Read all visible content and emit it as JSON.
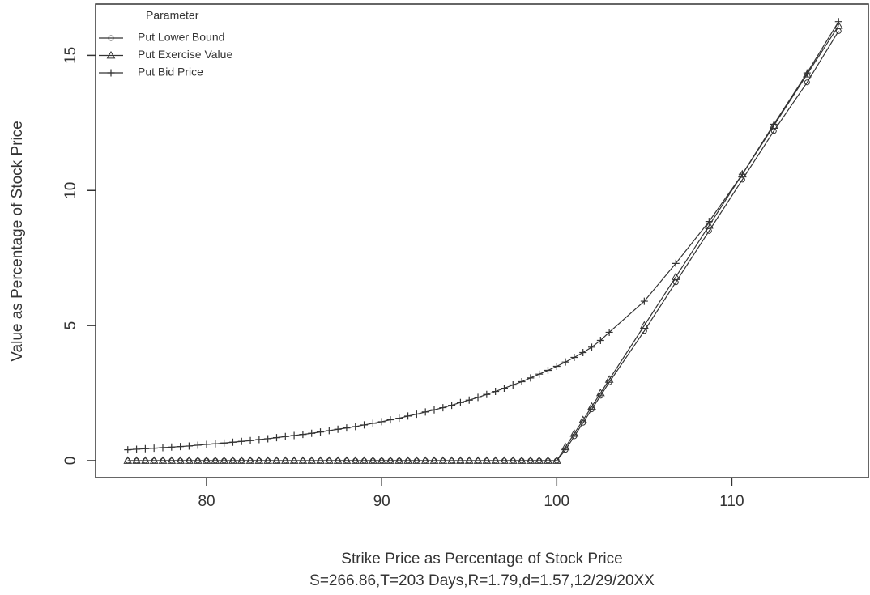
{
  "chart_data": {
    "type": "line",
    "x_label": "Strike Price as Percentage of Stock Price",
    "subtitle": "S=266.86,T=203 Days,R=1.79,d=1.57,12/29/20XX",
    "y_label": "Value as Percentage of Stock Price",
    "legend_title": "Parameter",
    "legend": "top-left",
    "x": [
      75.5,
      76,
      76.5,
      77,
      77.5,
      78,
      78.5,
      79,
      79.5,
      80,
      80.5,
      81,
      81.5,
      82,
      82.5,
      83,
      83.5,
      84,
      84.5,
      85,
      85.5,
      86,
      86.5,
      87,
      87.5,
      88,
      88.5,
      89,
      89.5,
      90,
      90.5,
      91,
      91.5,
      92,
      92.5,
      93,
      93.5,
      94,
      94.5,
      95,
      95.5,
      96,
      96.5,
      97,
      97.5,
      98,
      98.5,
      99,
      99.5,
      100,
      100.5,
      101,
      101.5,
      102,
      102.5,
      103,
      105,
      106.8,
      108.7,
      110.6,
      112.4,
      114.3,
      116.1
    ],
    "series": [
      {
        "name": "Put Lower Bound",
        "color": "#333333",
        "symbol": "circle",
        "values": [
          0,
          0,
          0,
          0,
          0,
          0,
          0,
          0,
          0,
          0,
          0,
          0,
          0,
          0,
          0,
          0,
          0,
          0,
          0,
          0,
          0,
          0,
          0,
          0,
          0,
          0,
          0,
          0,
          0,
          0,
          0,
          0,
          0,
          0,
          0,
          0,
          0,
          0,
          0,
          0,
          0,
          0,
          0,
          0,
          0,
          0,
          0,
          0,
          0,
          0,
          0.4,
          0.9,
          1.4,
          1.9,
          2.4,
          2.9,
          4.8,
          6.6,
          8.5,
          10.4,
          12.2,
          14.0,
          15.9
        ]
      },
      {
        "name": "Put Exercise Value",
        "color": "#333333",
        "symbol": "triangle",
        "values": [
          0,
          0,
          0,
          0,
          0,
          0,
          0,
          0,
          0,
          0,
          0,
          0,
          0,
          0,
          0,
          0,
          0,
          0,
          0,
          0,
          0,
          0,
          0,
          0,
          0,
          0,
          0,
          0,
          0,
          0,
          0,
          0,
          0,
          0,
          0,
          0,
          0,
          0,
          0,
          0,
          0,
          0,
          0,
          0,
          0,
          0,
          0,
          0,
          0,
          0,
          0.5,
          1,
          1.5,
          2,
          2.5,
          3,
          5,
          6.8,
          8.7,
          10.6,
          12.4,
          14.3,
          16.1
        ]
      },
      {
        "name": "Put Bid Price",
        "color": "#333333",
        "symbol": "plus",
        "values": [
          0.4,
          0.42,
          0.44,
          0.46,
          0.48,
          0.5,
          0.52,
          0.54,
          0.57,
          0.6,
          0.62,
          0.65,
          0.68,
          0.71,
          0.74,
          0.78,
          0.81,
          0.85,
          0.89,
          0.93,
          0.97,
          1.01,
          1.06,
          1.11,
          1.16,
          1.21,
          1.26,
          1.32,
          1.38,
          1.44,
          1.51,
          1.57,
          1.65,
          1.72,
          1.8,
          1.88,
          1.96,
          2.05,
          2.15,
          2.24,
          2.34,
          2.45,
          2.56,
          2.68,
          2.8,
          2.92,
          3.06,
          3.2,
          3.34,
          3.49,
          3.65,
          3.82,
          4.0,
          4.2,
          4.45,
          4.75,
          5.9,
          7.3,
          8.85,
          10.6,
          12.45,
          14.35,
          16.25
        ]
      }
    ],
    "xlim": [
      73.66,
      117.8
    ],
    "xticks": [
      80,
      90,
      100,
      110
    ],
    "ylim": [
      -0.63,
      16.9
    ],
    "yticks": [
      0,
      5,
      10,
      15
    ]
  }
}
